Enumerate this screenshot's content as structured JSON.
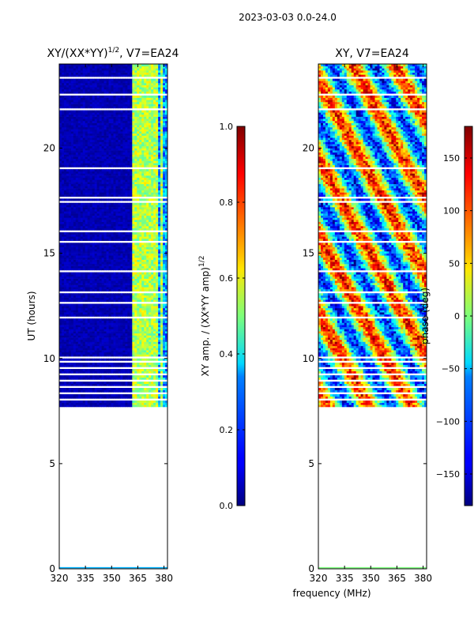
{
  "chart_data": {
    "type": "heatmap",
    "suptitle": "2023-03-03 0.0-24.0",
    "xlabel": "frequency (MHz)",
    "panels": [
      {
        "title_main": "XY/(XX*YY)",
        "title_sup": "1/2",
        "title_tail": ", V7=EA24",
        "ylabel": "UT (hours)",
        "xlim": [
          320,
          382
        ],
        "ylim": [
          0,
          24
        ],
        "xticks": [
          320,
          335,
          350,
          365,
          380
        ],
        "yticks": [
          0,
          5,
          10,
          15,
          20
        ],
        "data_start_hour": 7.7,
        "colorbar": {
          "label_main": "XY amp. / (XX*YY amp)",
          "label_sup": "1/2",
          "range": [
            0.0,
            1.0
          ],
          "ticks": [
            "0.0",
            "0.2",
            "0.4",
            "0.6",
            "0.8",
            "1.0"
          ],
          "tick_values": [
            0.0,
            0.2,
            0.4,
            0.6,
            0.8,
            1.0
          ]
        }
      },
      {
        "title_main": "XY",
        "title_sup": "",
        "title_tail": ", V7=EA24",
        "ylabel": "",
        "xlim": [
          320,
          382
        ],
        "ylim": [
          0,
          24
        ],
        "xticks": [
          320,
          335,
          350,
          365,
          380
        ],
        "yticks": [
          0,
          5,
          10,
          15,
          20
        ],
        "data_start_hour": 7.7,
        "colorbar": {
          "label_main": "phase (deg)",
          "label_sup": "",
          "range": [
            -180,
            180
          ],
          "ticks": [
            "−150",
            "−100",
            "−50",
            "0",
            "50",
            "100",
            "150"
          ],
          "tick_values": [
            -150,
            -100,
            -50,
            0,
            50,
            100,
            150
          ]
        }
      }
    ],
    "blank_hours": [
      17.4,
      17.6,
      14.1,
      13.1,
      12.6,
      10.0,
      9.8,
      9.5,
      9.2,
      8.9,
      8.6,
      8.3,
      8.0,
      21.8,
      23.3,
      22.5,
      19.0,
      16.0,
      15.5,
      11.9
    ],
    "bright_channels_mhz": [
      363,
      364,
      366,
      368,
      369,
      371,
      374,
      376,
      379
    ]
  }
}
